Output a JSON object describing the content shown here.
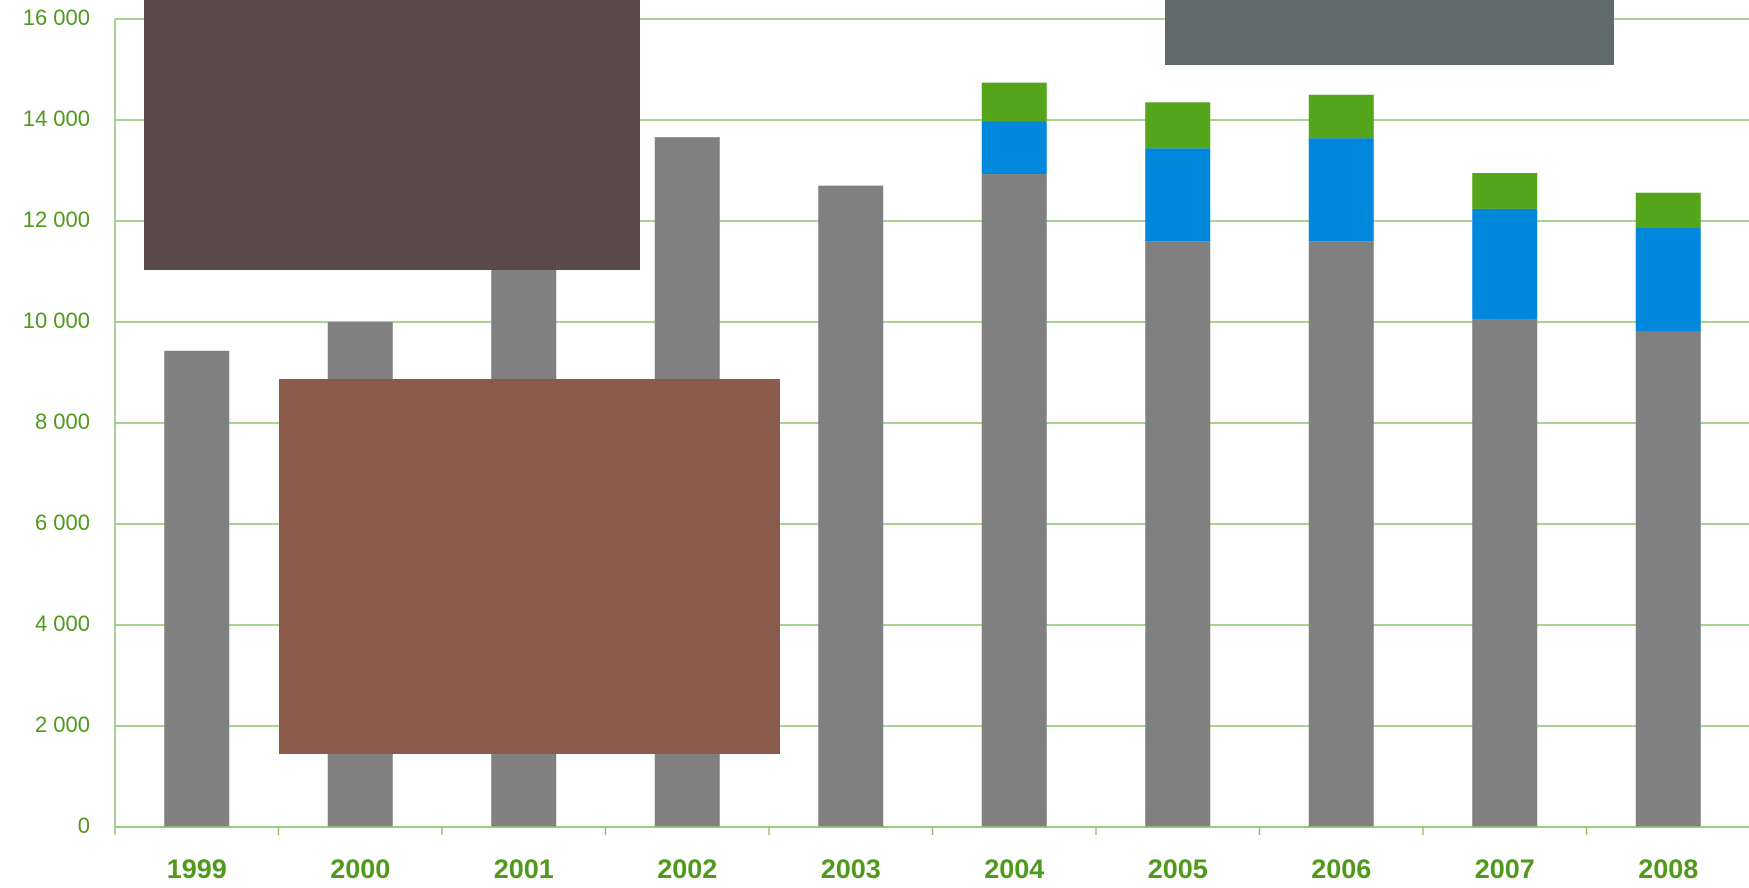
{
  "chart_data": {
    "type": "bar",
    "stacked": true,
    "categories": [
      "1999",
      "2000",
      "2001",
      "2002",
      "2003",
      "2004",
      "2005",
      "2006",
      "2007",
      "2008"
    ],
    "series": [
      {
        "color": "#808080",
        "values": [
          9430,
          10000,
          12000,
          13660,
          12700,
          12930,
          11600,
          11600,
          10060,
          9810
        ]
      },
      {
        "color": "#0088dd",
        "values": [
          null,
          null,
          null,
          null,
          null,
          1040,
          1840,
          2040,
          2180,
          2060
        ]
      },
      {
        "color": "#55a51c",
        "values": [
          null,
          null,
          null,
          null,
          null,
          770,
          910,
          860,
          710,
          690
        ]
      }
    ],
    "ylim": [
      0,
      16000
    ],
    "yticks": [
      0,
      {
        "value": 2000,
        "label": "2 000"
      },
      {
        "value": 4000,
        "label": "4 000"
      },
      {
        "value": 6000,
        "label": "6 000"
      },
      {
        "value": 8000,
        "label": "8 000"
      },
      {
        "value": 10000,
        "label": "10 000"
      },
      {
        "value": 12000,
        "label": "12 000"
      },
      {
        "value": 14000,
        "label": "14 000"
      },
      {
        "value": 16000,
        "label": "16 000"
      }
    ],
    "grid": true
  }
}
